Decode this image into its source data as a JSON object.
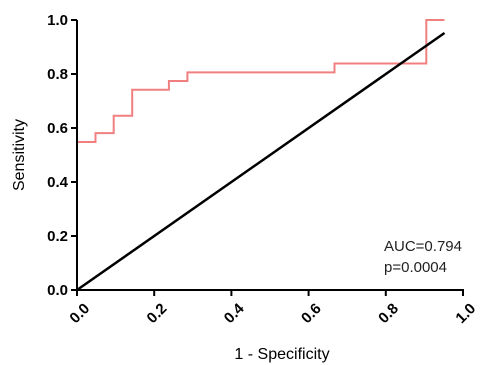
{
  "chart_data": {
    "type": "line",
    "xlabel": "1 - Specificity",
    "ylabel": "Sensitivity",
    "xlim": [
      0,
      1
    ],
    "ylim": [
      0,
      1
    ],
    "xticks": [
      "0.0",
      "0.2",
      "0.4",
      "0.6",
      "0.8",
      "1.0"
    ],
    "yticks": [
      "0.0",
      "0.2",
      "0.4",
      "0.6",
      "0.8",
      "1.0"
    ],
    "grid": false,
    "annotations": [
      "AUC=0.794",
      "p=0.0004"
    ],
    "series": [
      {
        "color": "#f08080",
        "style": "step",
        "x": [
          0,
          0,
          0.048,
          0.048,
          0.095,
          0.095,
          0.143,
          0.143,
          0.238,
          0.238,
          0.286,
          0.286,
          0.667,
          0.667,
          0.905,
          0.905,
          0.952
        ],
        "y": [
          0,
          0.548,
          0.548,
          0.581,
          0.581,
          0.645,
          0.645,
          0.742,
          0.742,
          0.774,
          0.774,
          0.806,
          0.806,
          0.839,
          0.839,
          1.0,
          1.0
        ]
      },
      {
        "color": "#000000",
        "style": "line",
        "x": [
          0,
          0.952
        ],
        "y": [
          0,
          0.952
        ]
      }
    ]
  }
}
